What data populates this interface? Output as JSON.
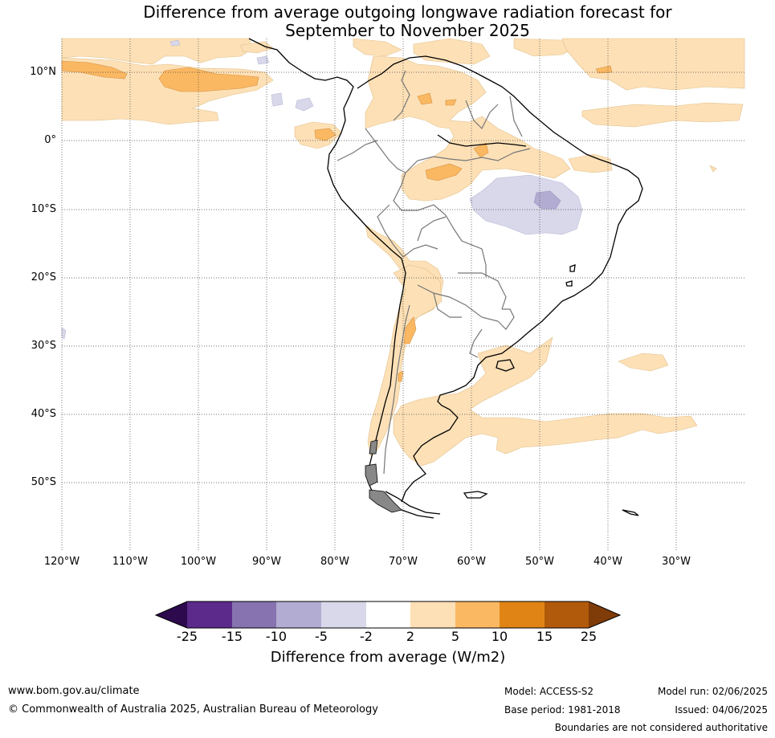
{
  "title_line1": "Difference from average outgoing longwave radiation forecast for",
  "title_line2": "September to November 2025",
  "lat_labels": [
    "10°N",
    "0°",
    "10°S",
    "20°S",
    "30°S",
    "40°S",
    "50°S"
  ],
  "lon_labels": [
    "120°W",
    "110°W",
    "100°W",
    "90°W",
    "80°W",
    "70°W",
    "60°W",
    "50°W",
    "40°W",
    "30°W"
  ],
  "colorbar": {
    "ticks": [
      "-25",
      "-15",
      "-10",
      "-5",
      "-2",
      "2",
      "5",
      "10",
      "15",
      "25"
    ],
    "colors": [
      "#2d0a4e",
      "#5b2a8a",
      "#8673b0",
      "#b2acd2",
      "#d8d8ea",
      "#ffffff",
      "#fde0b6",
      "#fbb862",
      "#e08515",
      "#b25a0b",
      "#7f3b08"
    ],
    "label": "Difference from average (W/m2)"
  },
  "footer": {
    "website": "www.bom.gov.au/climate",
    "copyright": "© Commonwealth of Australia 2025, Australian Bureau of Meteorology",
    "model": "Model: ACCESS-S2",
    "base_period": "Base period: 1981-2018",
    "model_run": "Model run: 02/06/2025",
    "issued": "Issued: 04/06/2025",
    "disclaimer": "Boundaries are not considered authoritative"
  }
}
